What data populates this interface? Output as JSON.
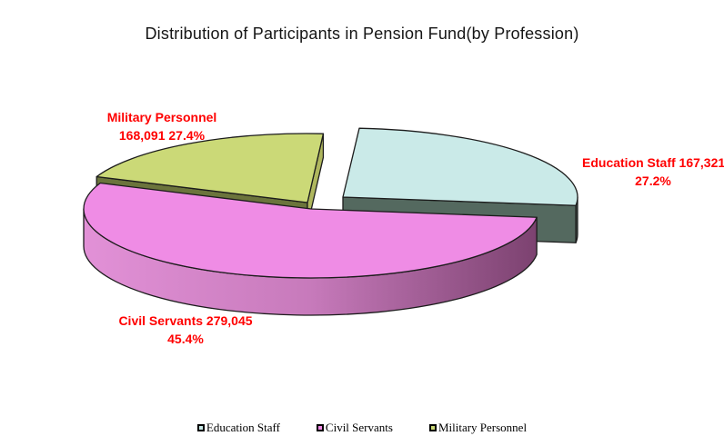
{
  "title": "Distribution of Participants in Pension Fund(by Profession)",
  "chart_data": {
    "type": "pie",
    "effect": "3d-exploded",
    "title": "Distribution of Participants in Pension Fund(by Profession)",
    "legend_position": "bottom",
    "data_label_color": "#FF0000",
    "series": [
      {
        "name": "Education Staff",
        "value": 167321,
        "pct": 27.2,
        "color": "#CAEAE8",
        "side_color": "#54695F",
        "exploded": true
      },
      {
        "name": "Civil Servants",
        "value": 279045,
        "pct": 45.4,
        "color": "#EF8CE5",
        "side_color": "#7C4270",
        "exploded": false
      },
      {
        "name": "Military Personnel",
        "value": 168091,
        "pct": 27.4,
        "color": "#CBD977",
        "side_color": "#6B743C",
        "exploded": false
      }
    ]
  },
  "callouts": {
    "military": {
      "line1": "Military Personnel",
      "line2": "168,091 27.4%"
    },
    "education": {
      "line1": "Education Staff 167,321",
      "line2": "27.2%"
    },
    "civil": {
      "line1": "Civil Servants 279,045",
      "line2": "45.4%"
    }
  },
  "legend": {
    "items": [
      {
        "label": "Education Staff",
        "color": "#CAEAE8"
      },
      {
        "label": "Civil Servants",
        "color": "#F08CE6"
      },
      {
        "label": "Military Personnel",
        "color": "#CBD977"
      }
    ]
  }
}
